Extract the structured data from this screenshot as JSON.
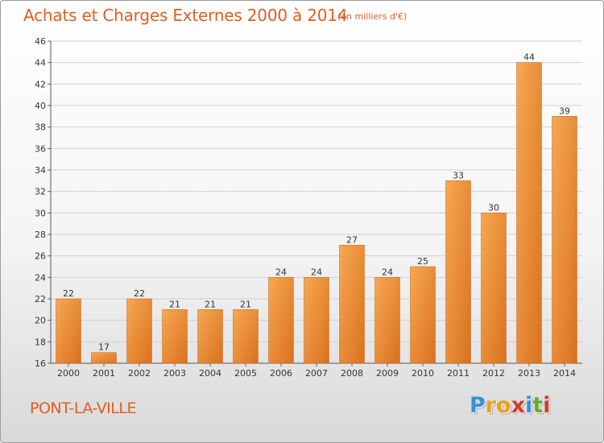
{
  "header": {
    "title": "Achats et Charges Externes 2000 à 2014",
    "subtitle": "(en milliers d'€)"
  },
  "footer": {
    "city": "PONT-LA-VILLE",
    "logo_letters": [
      "P",
      "r",
      "o",
      "x",
      "i",
      "t",
      "i"
    ],
    "logo_colors": [
      "#3a8fd6",
      "#e8a21a",
      "#e8a21a",
      "#d63a2a",
      "#3a8fd6",
      "#6aa82a",
      "#d63a2a"
    ]
  },
  "colors": {
    "bar_light": "#f7a852",
    "bar_dark": "#d9711f",
    "accent": "#e35d1e",
    "grid": "#d0d0d0"
  },
  "chart_data": {
    "type": "bar",
    "categories": [
      "2000",
      "2001",
      "2002",
      "2003",
      "2004",
      "2005",
      "2006",
      "2007",
      "2008",
      "2009",
      "2010",
      "2011",
      "2012",
      "2013",
      "2014"
    ],
    "values": [
      22,
      17,
      22,
      21,
      21,
      21,
      24,
      24,
      27,
      24,
      25,
      33,
      30,
      44,
      39
    ],
    "title": "Achats et Charges Externes 2000 à 2014",
    "subtitle": "(en milliers d'€)",
    "xlabel": "",
    "ylabel": "",
    "ylim": [
      16,
      46
    ],
    "yticks": [
      16,
      18,
      20,
      22,
      24,
      26,
      28,
      30,
      32,
      34,
      36,
      38,
      40,
      42,
      44,
      46
    ],
    "grid": true,
    "data_labels": true
  }
}
